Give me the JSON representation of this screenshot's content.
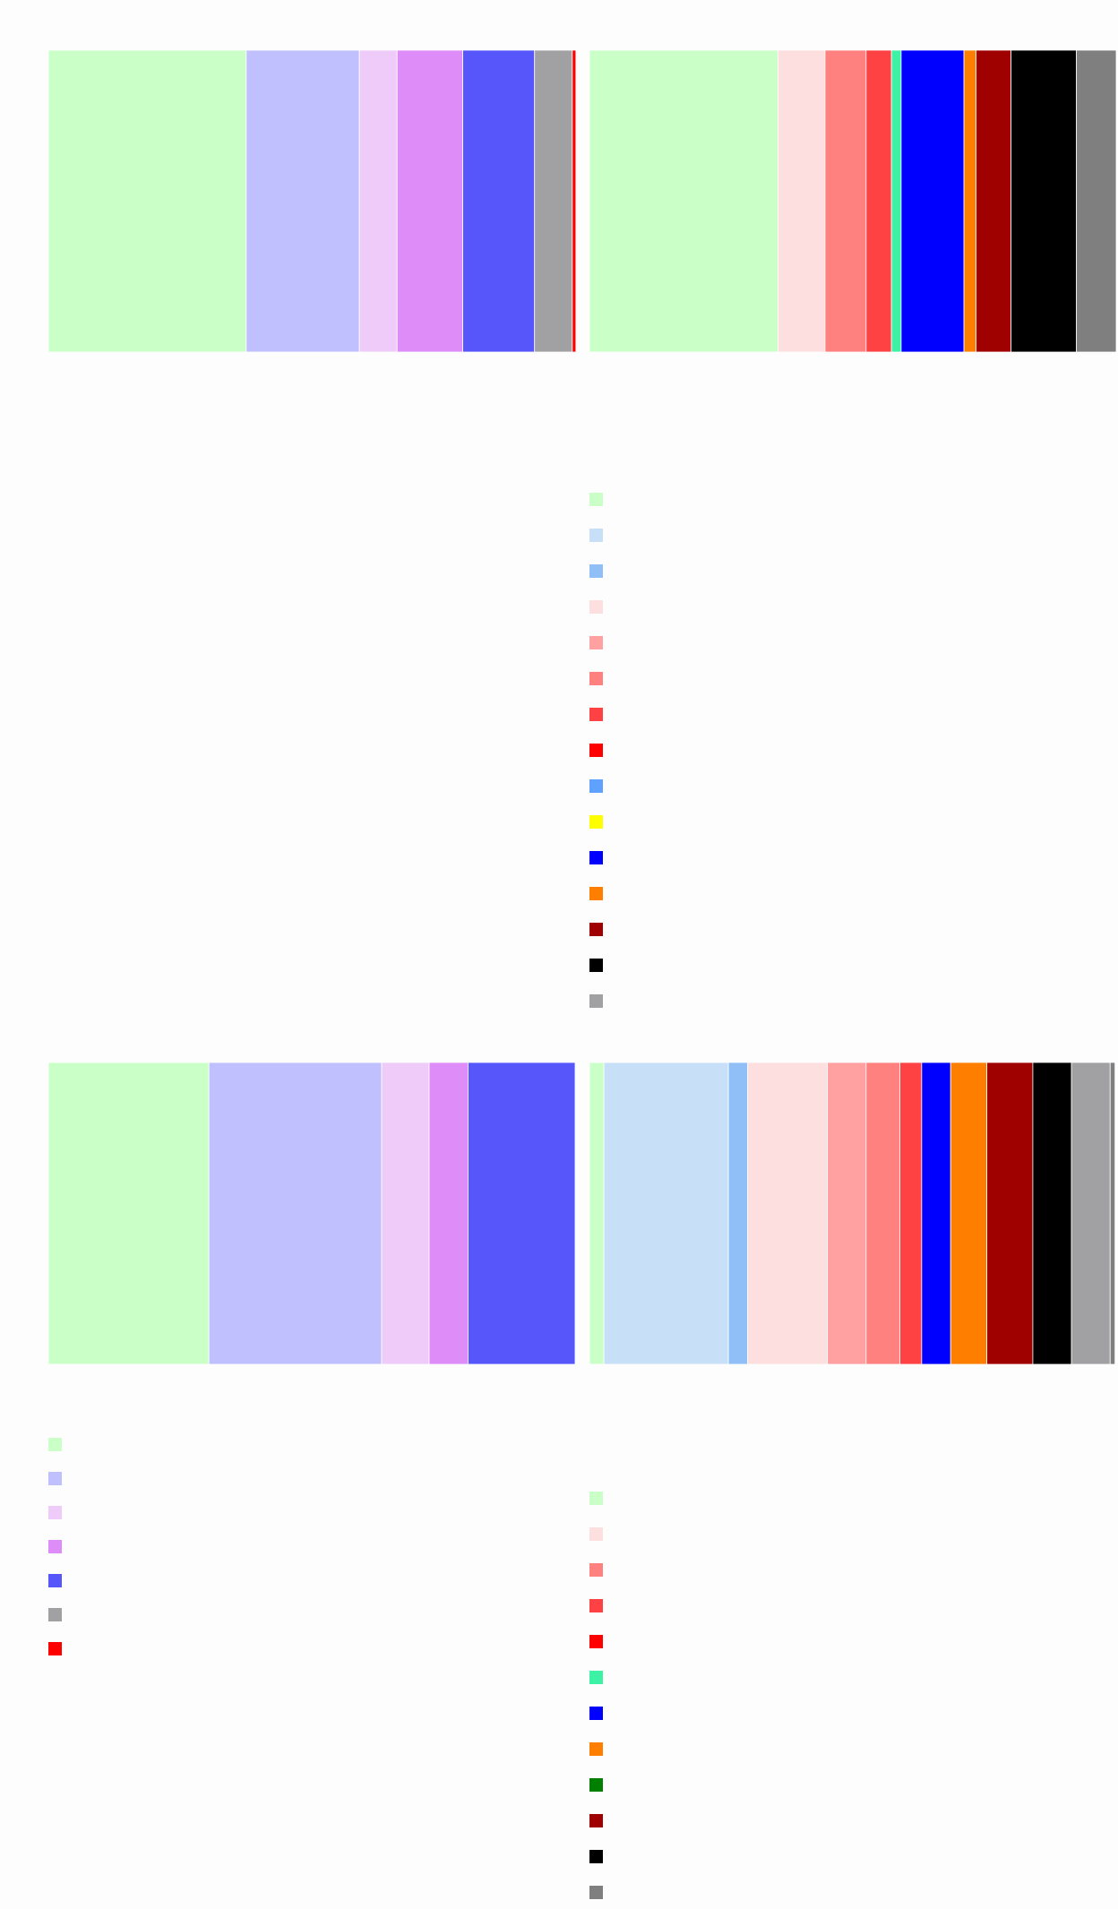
{
  "chart_data": [
    {
      "type": "bar",
      "orientation": "horizontal-stacked",
      "title": "",
      "xlabel": "",
      "ylabel": "",
      "xlim": [
        0,
        100
      ],
      "grid": false,
      "segments": [
        {
          "color": "#caffc8",
          "value": 37.56
        },
        {
          "color": "#c1c0fe",
          "value": 21.48
        },
        {
          "color": "#eecbf8",
          "value": 7.16
        },
        {
          "color": "#dd8cf8",
          "value": 12.47
        },
        {
          "color": "#5656fb",
          "value": 13.63
        },
        {
          "color": "#a1a1a4",
          "value": 7.16
        },
        {
          "color": "#fe0000",
          "value": 0.69
        }
      ],
      "legend": {
        "placement": "bottom-left",
        "entries": [
          {
            "label": "",
            "color": "#caffc8"
          },
          {
            "label": "",
            "color": "#c1c0fe"
          },
          {
            "label": "",
            "color": "#eecbf8"
          },
          {
            "label": "",
            "color": "#dd8cf8"
          },
          {
            "label": "",
            "color": "#5656fb"
          },
          {
            "label": "",
            "color": "#a1a1a4"
          },
          {
            "label": "",
            "color": "#fe0000"
          }
        ]
      }
    },
    {
      "type": "bar",
      "orientation": "horizontal-stacked",
      "title": "",
      "xlabel": "",
      "ylabel": "",
      "xlim": [
        0,
        100
      ],
      "grid": false,
      "segments": [
        {
          "color": "#caffc8",
          "value": 35.78
        },
        {
          "color": "#fddfe0",
          "value": 8.94
        },
        {
          "color": "#fe8180",
          "value": 7.8
        },
        {
          "color": "#fe4142",
          "value": 4.82
        },
        {
          "color": "#3df1a5",
          "value": 1.83
        },
        {
          "color": "#0000fe",
          "value": 11.93
        },
        {
          "color": "#fe7f00",
          "value": 2.29
        },
        {
          "color": "#9f0000",
          "value": 6.65
        },
        {
          "color": "#000000",
          "value": 12.39
        },
        {
          "color": "#7f7f7f",
          "value": 7.57
        }
      ],
      "legend": {
        "placement": "bottom-left",
        "entries": [
          {
            "label": "",
            "color": "#caffc8"
          },
          {
            "label": "",
            "color": "#fddfe0"
          },
          {
            "label": "",
            "color": "#fe8180"
          },
          {
            "label": "",
            "color": "#fe4142"
          },
          {
            "label": "",
            "color": "#fe0000"
          },
          {
            "label": "",
            "color": "#3df1a5"
          },
          {
            "label": "",
            "color": "#0000fe"
          },
          {
            "label": "",
            "color": "#fe7f00"
          },
          {
            "label": "",
            "color": "#007f00"
          },
          {
            "label": "",
            "color": "#9f0000"
          },
          {
            "label": "",
            "color": "#000000"
          },
          {
            "label": "",
            "color": "#7f7f7f"
          }
        ]
      }
    },
    {
      "type": "bar",
      "orientation": "horizontal-stacked",
      "title": "",
      "xlabel": "",
      "ylabel": "",
      "xlim": [
        0,
        100
      ],
      "grid": false,
      "segments": [
        {
          "color": "#caffc8",
          "value": 30.48
        },
        {
          "color": "#c1c0fe",
          "value": 32.79
        },
        {
          "color": "#eecbf8",
          "value": 9.01
        },
        {
          "color": "#dd8cf8",
          "value": 7.39
        },
        {
          "color": "#5656fb",
          "value": 20.33
        }
      ],
      "legend": {
        "placement": "none",
        "entries": []
      }
    },
    {
      "type": "bar",
      "orientation": "horizontal-stacked",
      "title": "",
      "xlabel": "",
      "ylabel": "",
      "xlim": [
        0,
        100
      ],
      "grid": false,
      "segments": [
        {
          "color": "#caffc8",
          "value": 2.75
        },
        {
          "color": "#c8dff8",
          "value": 23.62
        },
        {
          "color": "#90bff8",
          "value": 3.67
        },
        {
          "color": "#fddfe0",
          "value": 15.14
        },
        {
          "color": "#fea1a0",
          "value": 7.34
        },
        {
          "color": "#fe8180",
          "value": 6.42
        },
        {
          "color": "#fe4142",
          "value": 4.13
        },
        {
          "color": "#0000fe",
          "value": 5.5
        },
        {
          "color": "#fe7f00",
          "value": 6.88
        },
        {
          "color": "#9f0000",
          "value": 8.72
        },
        {
          "color": "#000000",
          "value": 7.34
        },
        {
          "color": "#a1a1a4",
          "value": 7.34
        },
        {
          "color": "#7f7f7f",
          "value": 0.92
        }
      ],
      "legend": {
        "placement": "top-left",
        "entries": [
          {
            "label": "",
            "color": "#caffc8"
          },
          {
            "label": "",
            "color": "#c8dff8"
          },
          {
            "label": "",
            "color": "#90bff8"
          },
          {
            "label": "",
            "color": "#fddfe0"
          },
          {
            "label": "",
            "color": "#fea1a0"
          },
          {
            "label": "",
            "color": "#fe8180"
          },
          {
            "label": "",
            "color": "#fe4142"
          },
          {
            "label": "",
            "color": "#fe0000"
          },
          {
            "label": "",
            "color": "#5fa1fe"
          },
          {
            "label": "",
            "color": "#fefe00"
          },
          {
            "label": "",
            "color": "#0000fe"
          },
          {
            "label": "",
            "color": "#fe7f00"
          },
          {
            "label": "",
            "color": "#9f0000"
          },
          {
            "label": "",
            "color": "#000000"
          },
          {
            "label": "",
            "color": "#a1a1a4"
          }
        ]
      }
    }
  ]
}
